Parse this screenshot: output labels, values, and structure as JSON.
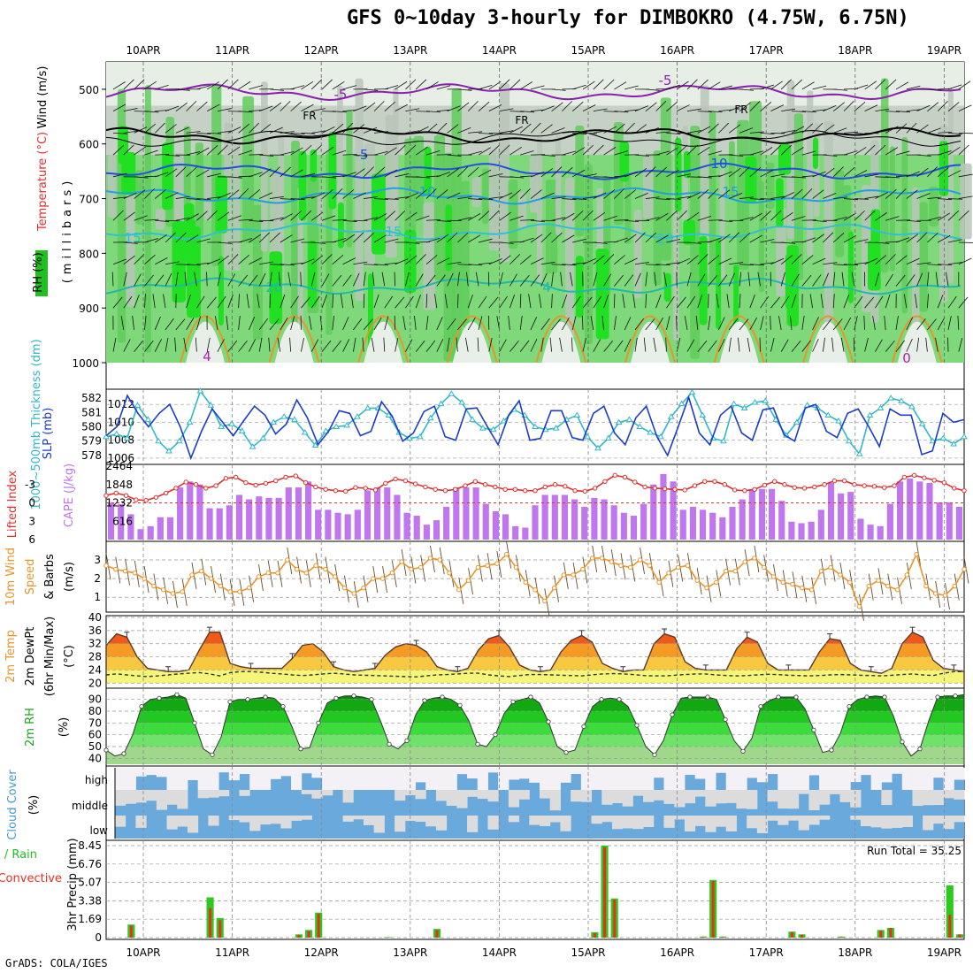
{
  "title": "GFS 0~10day 3-hourly for DIMBOKRO (4.75W, 6.75N)",
  "credit": "GrADS: COLA/IGES",
  "date_labels": [
    "10APR",
    "11APR",
    "12APR",
    "13APR",
    "14APR",
    "15APR",
    "16APR",
    "17APR",
    "18APR",
    "19APR"
  ],
  "panel_labels": {
    "upper": {
      "rh": "RH (%)",
      "temp": "Temperature (°C)",
      "wind": "Wind (m/s)",
      "millibars": "(millibars)"
    },
    "slp": {
      "thick": "1000~500mb Thickness (dm)",
      "slp": "SLP (mb)"
    },
    "cape": {
      "li": "Lifted Index",
      "cape": "CAPE (J/kg)"
    },
    "wind10": {
      "a": "10m Wind",
      "b": "Speed",
      "c": "& Barbs",
      "unit": "(m/s)"
    },
    "temp2m": {
      "a": "2m Temp",
      "b": "2m DewPt",
      "c": "(6hr Min/Max)",
      "unit": "(°C)"
    },
    "rh2m": {
      "a": "2m RH",
      "unit": "(%)"
    },
    "cloud": {
      "a": "Cloud Cover",
      "unit": "(%)",
      "high": "high",
      "middle": "middle",
      "low": "low"
    },
    "precip": {
      "a": "Total / Rain",
      "b": "Convective",
      "c": "3hr Precip (mm)",
      "run_total": "Run Total = 35.25"
    }
  },
  "chart_data": [
    {
      "type": "heatmap",
      "title": "Upper-air RH / Temperature / Wind",
      "ylabel": "millibars",
      "y_ticks": [
        500,
        600,
        700,
        800,
        900,
        1000
      ],
      "ylim": [
        1000,
        450
      ],
      "isotherm_labels": [
        "-5",
        "FR",
        "FR",
        "FR",
        "-5",
        "-5",
        "10",
        "10",
        "15",
        "15",
        "15",
        "20",
        "20",
        "4",
        "4",
        "0"
      ]
    },
    {
      "type": "line",
      "title": "1000~500mb Thickness / SLP",
      "y_left_ticks": [
        578,
        579,
        580,
        581,
        582
      ],
      "y_right_ticks": [
        1006,
        1008,
        1010,
        1012
      ],
      "slp_range": [
        1005.5,
        1013.5
      ],
      "thick_range": [
        577.5,
        582.5
      ],
      "series": [
        {
          "name": "SLP (mb)",
          "color": "#1c3ccc",
          "values": [
            1008.5,
            1009.5,
            1013.0,
            1011.0,
            1009.5,
            1011.0,
            1012.0,
            1009.5,
            1006.0,
            1009.0,
            1011.5,
            1010.0,
            1008.5,
            1010.2,
            1011.8,
            1010.8,
            1008.7,
            1009.8,
            1012.5,
            1010.5,
            1007.5,
            1009.0,
            1011.3,
            1011.0,
            1008.5,
            1009.0,
            1012.3,
            1010.7,
            1007.9,
            1008.8,
            1011.2,
            1011.8,
            1008.4,
            1008.0,
            1011.5,
            1011.6,
            1009.5,
            1007.5,
            1010.8,
            1012.4,
            1008.0,
            1008.2,
            1011.3,
            1011.3,
            1008.3,
            1008.0,
            1011.0,
            1011.8,
            1008.8,
            1007.5,
            1010.5,
            1011.8,
            1008.4,
            1006.3,
            1009.5,
            1012.8,
            1008.8,
            1007.5,
            1010.8,
            1011.8,
            1008.8,
            1008.0,
            1011.4,
            1011.6,
            1008.6,
            1007.9,
            1011.6,
            1012.0,
            1009.0,
            1008.3,
            1011.0,
            1011.5,
            1009.5,
            1007.3,
            1011.5,
            1010.8,
            1010.8,
            1006.4,
            1006.8,
            1011.0,
            1010.0,
            1010.3
          ]
        },
        {
          "name": "Thickness (dm)",
          "color": "#30b8c8",
          "values": [
            579.3,
            579.5,
            579.2,
            581.5,
            580.5,
            579.0,
            578.3,
            579.0,
            580.3,
            582.5,
            581.5,
            580.0,
            580.2,
            579.7,
            578.6,
            579.2,
            580.3,
            580.7,
            580.5,
            579.6,
            578.7,
            579.7,
            580.0,
            580.1,
            580.7,
            581.3,
            581.3,
            580.8,
            579.6,
            579.2,
            579.3,
            580.6,
            581.6,
            582.3,
            581.7,
            580.5,
            579.9,
            579.8,
            580.4,
            581.2,
            580.8,
            580.0,
            579.8,
            579.9,
            580.5,
            580.8,
            579.3,
            578.5,
            579.2,
            580.3,
            580.5,
            580.0,
            579.6,
            579.3,
            580.7,
            581.6,
            582.4,
            580.8,
            579.2,
            579.0,
            581.6,
            581.3,
            581.7,
            581.8,
            580.5,
            579.4,
            580.3,
            581.5,
            581.3,
            580.8,
            580.4,
            579.0,
            578.1,
            580.8,
            581.3,
            582.0,
            581.8,
            581.4,
            580.2,
            579.0,
            579.2,
            578.8,
            579.3
          ]
        }
      ]
    },
    {
      "type": "bar",
      "title": "Lifted Index / CAPE",
      "y_left_ticks": [
        "-3",
        "0",
        "3",
        "6"
      ],
      "y_right_ticks": [
        616,
        1232,
        1848,
        2464
      ],
      "cape_range": [
        0,
        2464
      ],
      "li_range": [
        6,
        -6
      ],
      "series": [
        {
          "name": "CAPE (J/kg)",
          "color": "#c077ee",
          "values": [
            1240,
            1190,
            850,
            350,
            450,
            750,
            750,
            1750,
            1950,
            1850,
            1050,
            1050,
            1150,
            1500,
            1350,
            1450,
            1400,
            1400,
            1750,
            1750,
            1950,
            1000,
            1000,
            900,
            850,
            1000,
            1650,
            1750,
            1750,
            1500,
            900,
            800,
            500,
            650,
            1100,
            1750,
            1750,
            1750,
            1200,
            950,
            850,
            450,
            400,
            1150,
            1500,
            1500,
            1500,
            1350,
            1100,
            1400,
            1350,
            1150,
            900,
            800,
            1200,
            1850,
            2200,
            1950,
            1000,
            1100,
            1000,
            900,
            750,
            1100,
            1350,
            1700,
            1700,
            1700,
            1300,
            600,
            550,
            600,
            1000,
            1900,
            1550,
            1600,
            700,
            500,
            450,
            1200,
            1950,
            2050,
            1950,
            1900,
            1250,
            1250,
            1100
          ]
        },
        {
          "name": "Lifted Index",
          "color": "#e03030",
          "values": [
            -1.2,
            -1.6,
            -1.2,
            -0.5,
            -0.4,
            -0.9,
            -1.6,
            -2.4,
            -3.4,
            -3.0,
            -2.4,
            -2.8,
            -4.0,
            -4.2,
            -3.3,
            -2.9,
            -3.2,
            -3.6,
            -4.2,
            -4.4,
            -3.3,
            -2.6,
            -2.2,
            -2.0,
            -1.9,
            -2.5,
            -2.4,
            -2.1,
            -3.2,
            -3.9,
            -3.6,
            -3.1,
            -2.6,
            -2.2,
            -2.0,
            -2.2,
            -2.8,
            -3.5,
            -3.0,
            -2.6,
            -2.2,
            -2.2,
            -2.0,
            -2.0,
            -2.6,
            -3.0,
            -2.7,
            -2.0,
            -1.9,
            -2.4,
            -3.5,
            -4.5,
            -4.2,
            -3.4,
            -2.6,
            -2.4,
            -2.3,
            -2.2,
            -2.1,
            -2.8,
            -3.5,
            -3.5,
            -3.0,
            -2.1,
            -2.0,
            -2.2,
            -2.9,
            -3.5,
            -3.0,
            -2.5,
            -2.4,
            -2.6,
            -3.0,
            -3.6,
            -3.6,
            -3.0,
            -2.8,
            -2.7,
            -2.5,
            -2.8,
            -4.2,
            -4.5,
            -4.1,
            -3.7,
            -3.3,
            -2.4,
            -2.0
          ]
        }
      ]
    },
    {
      "type": "line",
      "title": "10m Wind Speed & Barbs",
      "y_ticks": [
        1,
        2,
        3
      ],
      "ylim": [
        0.3,
        3.9
      ],
      "series": [
        {
          "name": "Speed (m/s)",
          "color": "#e8952a",
          "values": [
            2.7,
            2.5,
            2.4,
            2.3,
            2.0,
            1.6,
            1.4,
            1.2,
            1.3,
            2.2,
            2.4,
            2.0,
            1.6,
            1.3,
            1.3,
            1.5,
            2.1,
            2.3,
            2.3,
            3.0,
            2.5,
            2.3,
            2.7,
            2.5,
            2.1,
            1.5,
            1.2,
            1.5,
            2.0,
            2.0,
            2.3,
            2.9,
            2.5,
            2.6,
            3.1,
            3.0,
            2.3,
            1.4,
            1.9,
            2.6,
            2.7,
            2.8,
            3.3,
            2.6,
            1.8,
            1.4,
            0.8,
            1.5,
            2.2,
            2.2,
            2.5,
            3.1,
            3.1,
            2.9,
            2.7,
            2.6,
            3.0,
            2.7,
            1.8,
            2.3,
            2.6,
            2.7,
            1.9,
            1.5,
            1.8,
            2.4,
            2.4,
            2.9,
            3.1,
            2.6,
            2.1,
            1.8,
            1.7,
            1.5,
            1.4,
            2.4,
            2.6,
            2.2,
            1.8,
            0.5,
            1.6,
            1.9,
            1.6,
            1.4,
            2.2,
            3.3,
            1.6,
            1.2,
            1.1,
            1.6,
            2.5
          ]
        }
      ]
    },
    {
      "type": "area",
      "title": "2m Temp / DewPt (6hr Min/Max)",
      "y_ticks": [
        20,
        24,
        28,
        32,
        36,
        40
      ],
      "ylim": [
        19,
        40
      ],
      "series": [
        {
          "name": "2m Temp (°C)",
          "values": [
            31.5,
            35.0,
            34.0,
            28.0,
            24.5,
            24.0,
            23.5,
            23.5,
            24.0,
            30.0,
            35.5,
            35.5,
            26.0,
            25.0,
            24.5,
            24.5,
            24.5,
            24.5,
            27.5,
            31.5,
            32.0,
            29.5,
            25.0,
            24.0,
            23.5,
            24.0,
            24.5,
            28.5,
            31.0,
            32.0,
            31.5,
            29.5,
            25.0,
            24.0,
            23.5,
            24.5,
            30.0,
            33.5,
            34.5,
            31.0,
            25.5,
            24.0,
            23.5,
            24.0,
            29.5,
            33.0,
            34.5,
            32.5,
            26.0,
            24.5,
            23.5,
            24.0,
            24.0,
            32.0,
            35.0,
            34.0,
            26.5,
            24.5,
            24.0,
            24.0,
            24.0,
            30.5,
            34.0,
            32.5,
            26.0,
            24.0,
            24.0,
            24.0,
            24.0,
            29.5,
            33.5,
            33.0,
            26.0,
            24.0,
            23.5,
            23.0,
            24.5,
            32.0,
            35.5,
            34.0,
            27.0,
            24.5,
            24.0,
            23.5
          ]
        },
        {
          "name": "2m DewPt (°C)",
          "values": [
            22.5,
            22.8,
            22.5,
            22.2,
            22.0,
            22.2,
            22.5,
            22.8,
            23.0,
            23.2,
            22.8,
            22.2,
            23.2,
            23.5,
            23.5,
            23.3,
            23.0,
            22.8,
            22.5,
            22.3,
            22.5,
            22.8,
            23.0,
            22.8,
            22.5,
            22.4,
            22.3,
            22.2,
            22.1,
            22.0,
            21.9,
            22.2,
            22.5,
            22.6,
            22.8,
            23.0,
            23.0,
            22.5,
            22.2,
            22.0,
            22.3,
            22.6,
            22.6,
            22.5,
            22.4,
            22.3,
            22.2,
            22.5,
            22.8,
            22.9,
            22.8,
            22.6,
            22.3,
            22.2,
            22.2,
            22.4,
            22.6,
            22.8,
            22.8,
            22.5,
            22.3,
            22.2,
            22.3,
            22.5,
            22.7,
            22.6,
            22.4,
            22.3,
            22.2,
            22.3,
            22.5,
            22.6,
            22.5,
            22.4,
            22.3,
            22.2,
            22.4,
            22.6,
            22.8,
            22.5,
            22.3,
            23.0,
            23.5,
            23.5
          ]
        }
      ]
    },
    {
      "type": "area",
      "title": "2m RH",
      "y_ticks": [
        40,
        50,
        60,
        70,
        80,
        90
      ],
      "ylim": [
        35,
        98
      ],
      "series": [
        {
          "name": "2m RH (%)",
          "values": [
            47,
            42,
            44,
            60,
            84,
            90,
            91,
            92,
            94,
            91,
            70,
            48,
            43,
            58,
            88,
            90,
            90,
            91,
            92,
            91,
            84,
            67,
            48,
            49,
            70,
            87,
            91,
            93,
            93,
            92,
            90,
            72,
            52,
            48,
            55,
            77,
            89,
            91,
            92,
            90,
            85,
            72,
            52,
            50,
            60,
            78,
            88,
            90,
            92,
            87,
            71,
            50,
            45,
            47,
            67,
            84,
            90,
            91,
            90,
            84,
            68,
            50,
            43,
            55,
            77,
            91,
            92,
            92,
            92,
            90,
            73,
            55,
            46,
            57,
            84,
            89,
            92,
            92,
            92,
            82,
            64,
            45,
            47,
            61,
            84,
            90,
            92,
            93,
            92,
            76,
            54,
            42,
            48,
            72,
            92,
            93,
            93,
            94
          ]
        }
      ]
    },
    {
      "type": "heatmap",
      "title": "Cloud Cover (%)",
      "rows": [
        "high",
        "middle",
        "low"
      ]
    },
    {
      "type": "bar",
      "title": "3hr Precip (mm)",
      "y_ticks": [
        0,
        1.69,
        3.38,
        5.07,
        6.76,
        8.45
      ],
      "ylim": [
        0,
        8.45
      ],
      "run_total": 35.25,
      "series": [
        {
          "name": "Total",
          "color": "#2ec81e",
          "points": [
            [
              2,
              1.2
            ],
            [
              10,
              3.7
            ],
            [
              11,
              1.8
            ],
            [
              19,
              0.3
            ],
            [
              20,
              0.7
            ],
            [
              21,
              2.3
            ],
            [
              28,
              0.05
            ],
            [
              33,
              0.8
            ],
            [
              49,
              0.5
            ],
            [
              50,
              8.45
            ],
            [
              51,
              3.6
            ],
            [
              60,
              0.1
            ],
            [
              61,
              5.3
            ],
            [
              62,
              0.1
            ],
            [
              69,
              0.55
            ],
            [
              70,
              0.3
            ],
            [
              74,
              0.1
            ],
            [
              78,
              0.7
            ],
            [
              79,
              0.9
            ],
            [
              85,
              4.8
            ],
            [
              86,
              0.3
            ]
          ]
        },
        {
          "name": "Convective",
          "color": "#e83020",
          "points": [
            [
              2,
              1.1
            ],
            [
              10,
              2.7
            ],
            [
              11,
              1.6
            ],
            [
              19,
              0.25
            ],
            [
              20,
              0.6
            ],
            [
              21,
              2.2
            ],
            [
              28,
              0.03
            ],
            [
              33,
              0.7
            ],
            [
              49,
              0.4
            ],
            [
              50,
              8.3
            ],
            [
              51,
              3.5
            ],
            [
              60,
              0.08
            ],
            [
              61,
              5.2
            ],
            [
              62,
              0.08
            ],
            [
              69,
              0.5
            ],
            [
              70,
              0.25
            ],
            [
              74,
              0.08
            ],
            [
              78,
              0.65
            ],
            [
              79,
              0.9
            ],
            [
              85,
              2.1
            ],
            [
              86,
              0.3
            ]
          ]
        }
      ]
    }
  ]
}
